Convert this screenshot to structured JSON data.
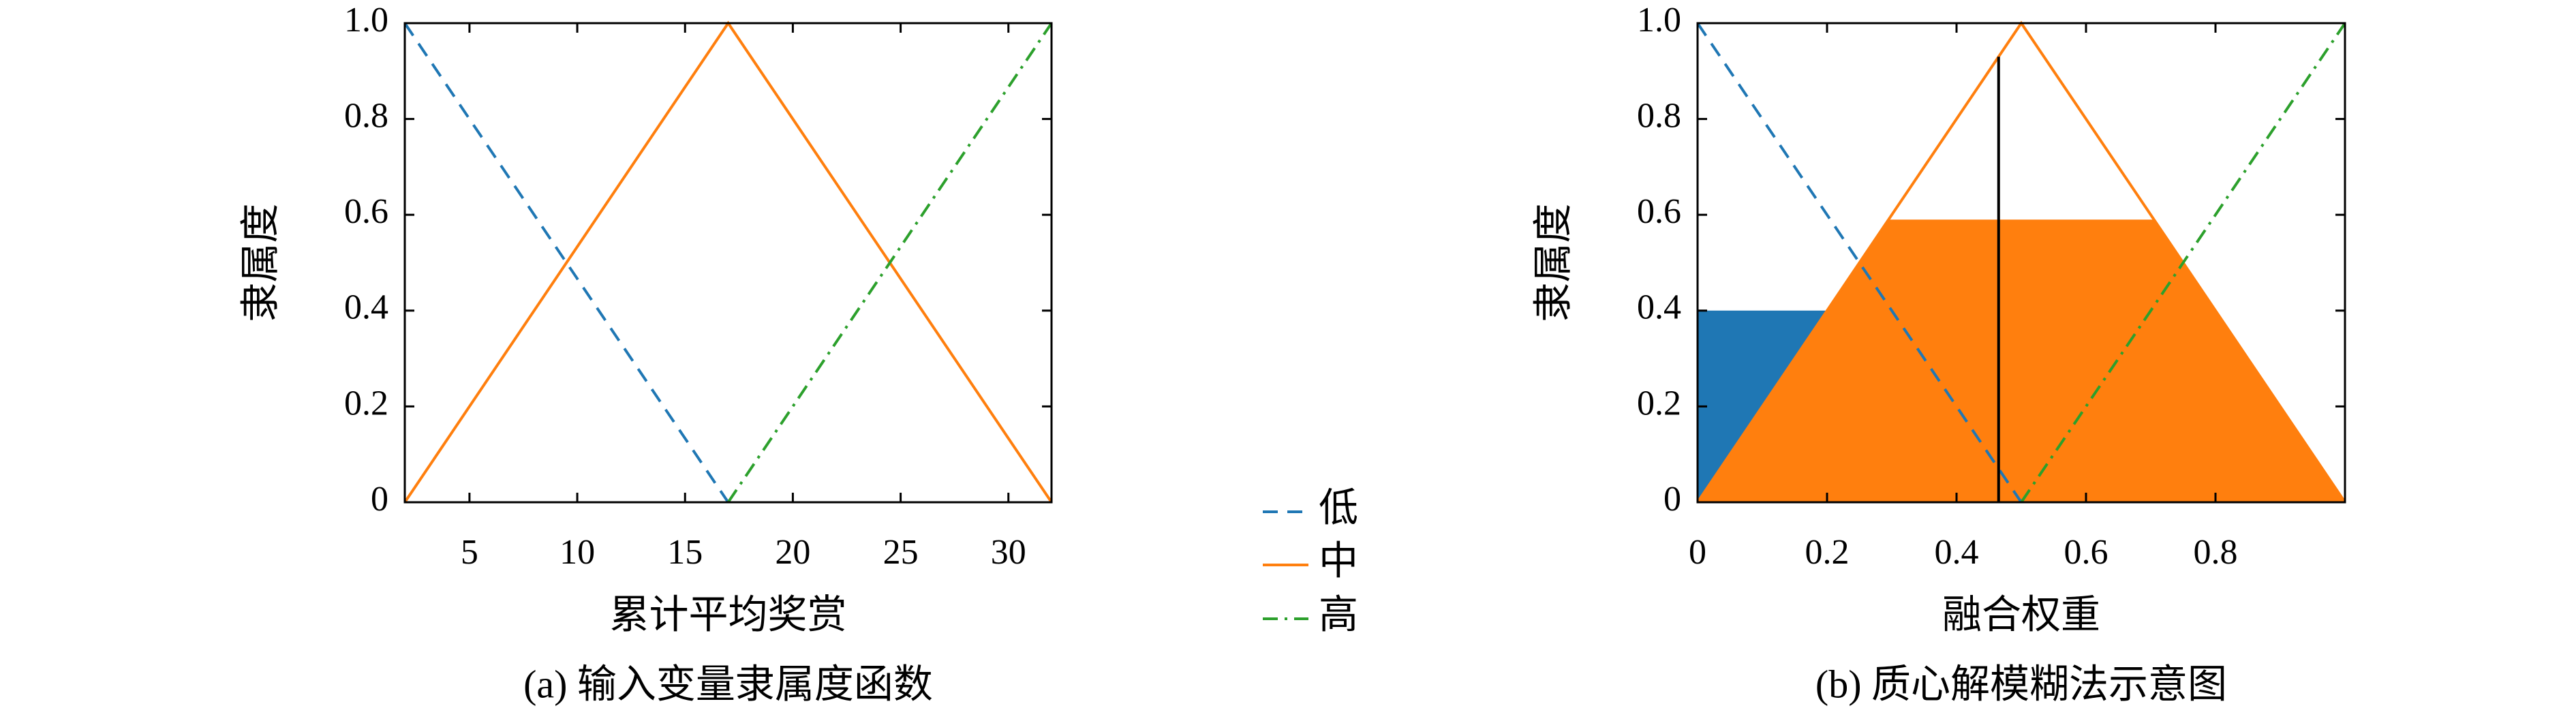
{
  "chart_data": [
    {
      "type": "line",
      "title": "(a) 输入变量隶属度函数",
      "xlabel": "累计平均奖赏",
      "ylabel": "隶属度",
      "xlim": [
        2,
        32
      ],
      "ylim": [
        0,
        1
      ],
      "xticks": [
        5,
        10,
        15,
        20,
        25,
        30
      ],
      "yticks": [
        0,
        0.2,
        0.4,
        0.6,
        0.8,
        {
          "value": 1,
          "label": "1.0"
        }
      ],
      "series": [
        {
          "name": "低",
          "color": "#1f77b4",
          "dash": "dashed",
          "x": [
            2,
            17
          ],
          "values": [
            1,
            0
          ]
        },
        {
          "name": "中",
          "color": "#ff7f0e",
          "dash": "solid",
          "x": [
            2,
            17,
            32
          ],
          "values": [
            0,
            1,
            0
          ]
        },
        {
          "name": "高",
          "color": "#2ca02c",
          "dash": "dashdot",
          "x": [
            17,
            32
          ],
          "values": [
            0,
            1
          ]
        }
      ],
      "legend": true
    },
    {
      "type": "line",
      "title": "(b) 质心解模糊法示意图",
      "xlabel": "融合权重",
      "ylabel": "隶属度",
      "xlim": [
        0,
        1
      ],
      "ylim": [
        0,
        1
      ],
      "xticks": [
        0,
        0.2,
        0.4,
        0.6,
        0.8
      ],
      "yticks": [
        0,
        0.2,
        0.4,
        0.6,
        0.8,
        {
          "value": 1,
          "label": "1.0"
        }
      ],
      "fills": [
        {
          "color": "#1f77b4",
          "x": [
            0,
            0,
            0.3,
            0.5
          ],
          "values": [
            0,
            0.4,
            0.4,
            0
          ]
        },
        {
          "color": "#ff7f0e",
          "x": [
            0,
            0.295,
            0.705,
            1
          ],
          "values": [
            0,
            0.59,
            0.59,
            0
          ]
        }
      ],
      "series": [
        {
          "color": "#1f77b4",
          "dash": "dashed",
          "x": [
            0,
            0.5
          ],
          "values": [
            1,
            0
          ]
        },
        {
          "color": "#ff7f0e",
          "dash": "solid",
          "x": [
            0,
            0.5,
            1
          ],
          "values": [
            0,
            1,
            0
          ]
        },
        {
          "color": "#2ca02c",
          "dash": "dashdot",
          "x": [
            0.5,
            1
          ],
          "values": [
            0,
            1
          ]
        }
      ],
      "vlines": [
        {
          "x": 0.465,
          "ymax": 0.93,
          "color": "#000000"
        }
      ]
    }
  ]
}
